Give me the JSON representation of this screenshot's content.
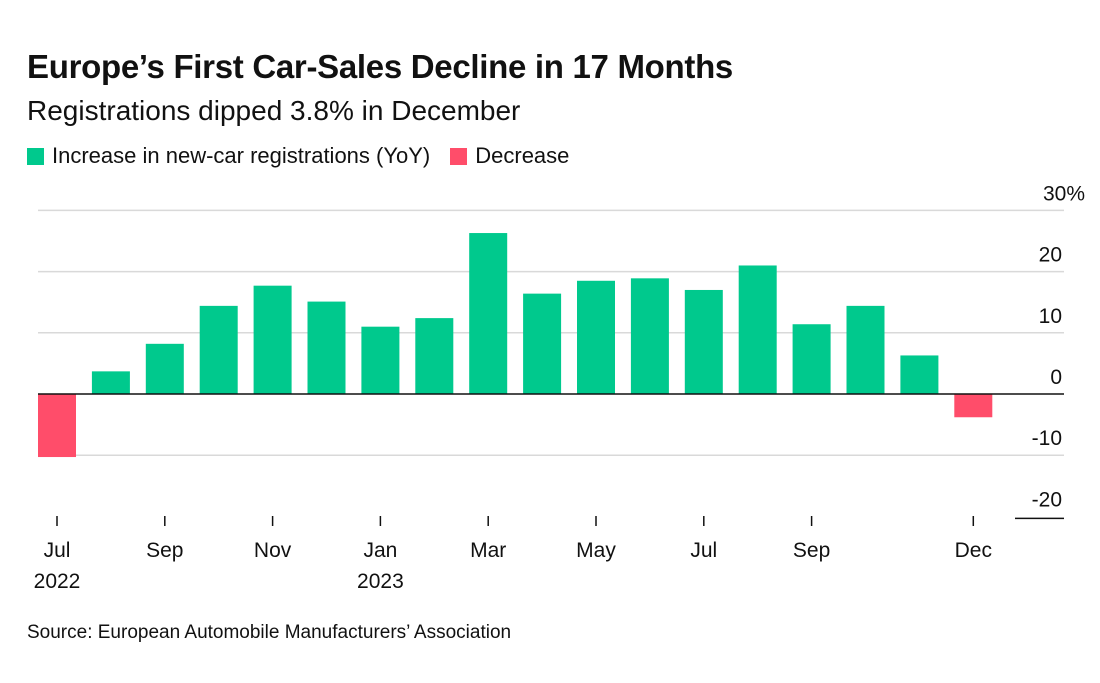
{
  "title": "Europe’s First Car-Sales Decline in 17 Months",
  "subtitle": "Registrations dipped 3.8% in December",
  "legend": {
    "increase": "Increase in new-car registrations (YoY)",
    "decrease": "Decrease"
  },
  "colors": {
    "increase": "#00c98d",
    "decrease": "#ff4d6a",
    "grid": "#d9d9d9",
    "zero_line": "#111111"
  },
  "source": "Source: European Automobile Manufacturers’ Association",
  "chart_data": {
    "type": "bar",
    "title": "Europe’s First Car-Sales Decline in 17 Months",
    "subtitle": "Registrations dipped 3.8% in December",
    "xlabel": "",
    "ylabel": "",
    "ylim": [
      -20,
      30
    ],
    "yticks": [
      {
        "value": 30,
        "label": "30%"
      },
      {
        "value": 20,
        "label": "20"
      },
      {
        "value": 10,
        "label": "10"
      },
      {
        "value": 0,
        "label": "0"
      },
      {
        "value": -10,
        "label": "-10"
      },
      {
        "value": -20,
        "label": "-20"
      }
    ],
    "categories": [
      "Jul 2022",
      "Aug 2022",
      "Sep 2022",
      "Oct 2022",
      "Nov 2022",
      "Dec 2022",
      "Jan 2023",
      "Feb 2023",
      "Mar 2023",
      "Apr 2023",
      "May 2023",
      "Jun 2023",
      "Jul 2023",
      "Aug 2023",
      "Sep 2023",
      "Oct 2023",
      "Nov 2023",
      "Dec 2023"
    ],
    "values": [
      -10.3,
      3.7,
      8.2,
      14.4,
      17.7,
      15.1,
      11.0,
      12.4,
      26.3,
      16.4,
      18.5,
      18.9,
      17.0,
      21.0,
      11.4,
      14.4,
      6.3,
      -3.8
    ],
    "xticks": [
      {
        "index": 0,
        "line1": "Jul",
        "line2": "2022"
      },
      {
        "index": 2,
        "line1": "Sep",
        "line2": ""
      },
      {
        "index": 4,
        "line1": "Nov",
        "line2": ""
      },
      {
        "index": 6,
        "line1": "Jan",
        "line2": "2023"
      },
      {
        "index": 8,
        "line1": "Mar",
        "line2": ""
      },
      {
        "index": 10,
        "line1": "May",
        "line2": ""
      },
      {
        "index": 12,
        "line1": "Jul",
        "line2": ""
      },
      {
        "index": 14,
        "line1": "Sep",
        "line2": ""
      },
      {
        "index": 17,
        "line1": "Dec",
        "line2": ""
      }
    ],
    "grid": true,
    "legend_position": "top-left"
  }
}
